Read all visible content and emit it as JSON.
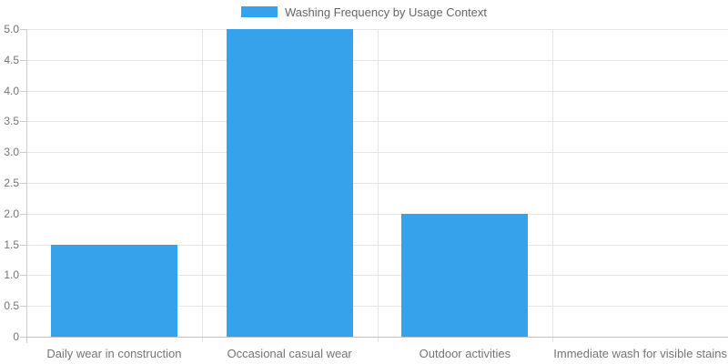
{
  "legend": {
    "label": "Washing Frequency by Usage Context",
    "swatch_color": "#36A2EB"
  },
  "chart_data": {
    "type": "bar",
    "title": "Washing Frequency by Usage Context",
    "categories": [
      "Daily wear in construction",
      "Occasional casual wear",
      "Outdoor activities",
      "Immediate wash for visible stains"
    ],
    "values": [
      1.5,
      5.0,
      2.0,
      0
    ],
    "xlabel": "",
    "ylabel": "",
    "ylim": [
      0,
      5
    ],
    "ytick_step": 0.5,
    "ytick_labels": [
      "0",
      "0.5",
      "1.0",
      "1.5",
      "2.0",
      "2.5",
      "3.0",
      "3.5",
      "4.0",
      "4.5",
      "5.0"
    ],
    "grid": true,
    "legend_position": "top-center",
    "bar_color": "#36A2EB"
  },
  "colors": {
    "bar": "#36A2EB",
    "grid": "#e6e6e6",
    "axis": "#cccccc",
    "baseline": "#c2c2c2",
    "tick_text": "#757575",
    "legend_text": "#666666",
    "background": "#ffffff"
  }
}
